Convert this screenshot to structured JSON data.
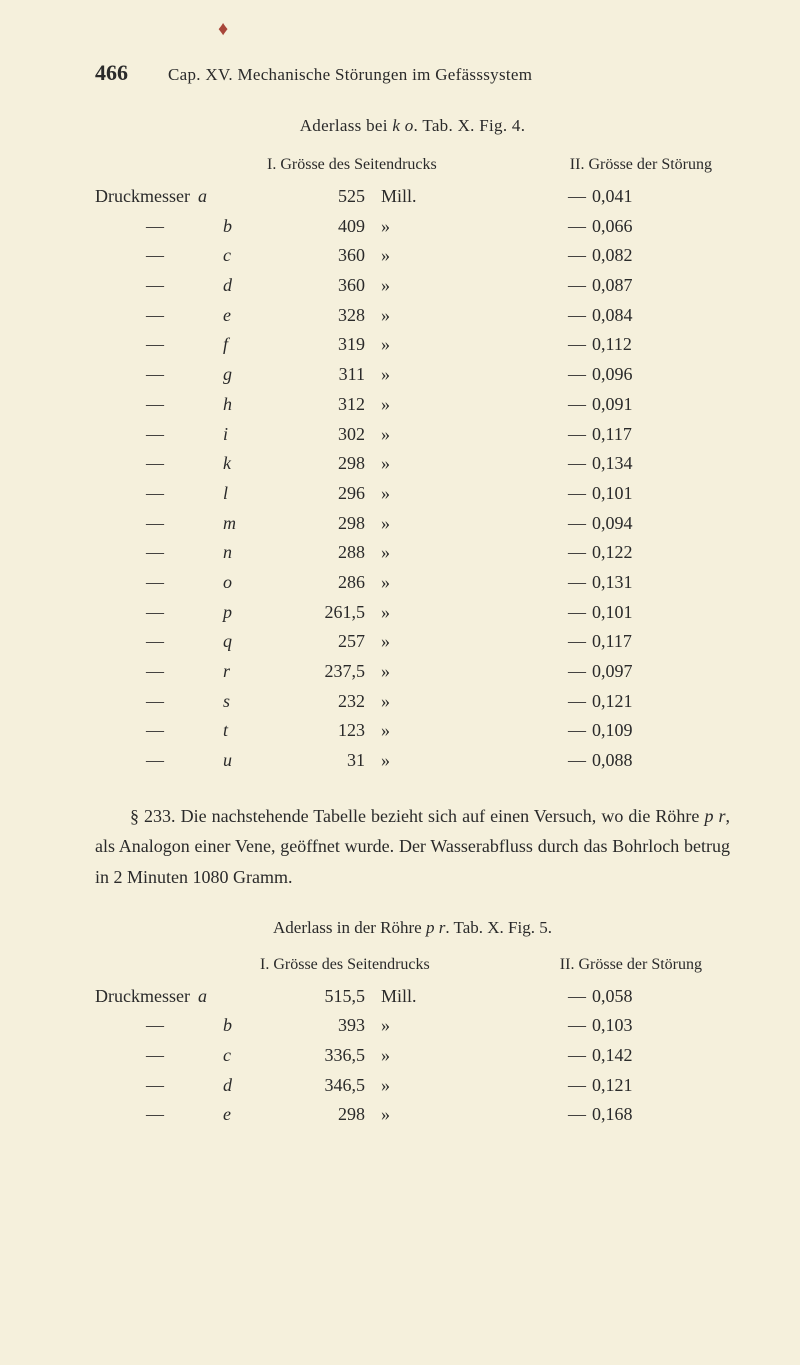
{
  "page_number": "466",
  "chapter_title": "Cap. XV. Mechanische Störungen im Gefässsystem",
  "table1": {
    "caption": "Aderlass bei k o. Tab. X. Fig. 4.",
    "col1_header": "I. Grösse des Seitendrucks",
    "col2_header": "II. Grösse der Störung",
    "label_first": "Druckmesser",
    "label_cont": "—",
    "unit_first": "Mill.",
    "unit_cont": "»",
    "dash": "—",
    "rows": [
      {
        "letter": "a",
        "pressure": "525",
        "disturbance": "0,041"
      },
      {
        "letter": "b",
        "pressure": "409",
        "disturbance": "0,066"
      },
      {
        "letter": "c",
        "pressure": "360",
        "disturbance": "0,082"
      },
      {
        "letter": "d",
        "pressure": "360",
        "disturbance": "0,087"
      },
      {
        "letter": "e",
        "pressure": "328",
        "disturbance": "0,084"
      },
      {
        "letter": "f",
        "pressure": "319",
        "disturbance": "0,112"
      },
      {
        "letter": "g",
        "pressure": "311",
        "disturbance": "0,096"
      },
      {
        "letter": "h",
        "pressure": "312",
        "disturbance": "0,091"
      },
      {
        "letter": "i",
        "pressure": "302",
        "disturbance": "0,117"
      },
      {
        "letter": "k",
        "pressure": "298",
        "disturbance": "0,134"
      },
      {
        "letter": "l",
        "pressure": "296",
        "disturbance": "0,101"
      },
      {
        "letter": "m",
        "pressure": "298",
        "disturbance": "0,094"
      },
      {
        "letter": "n",
        "pressure": "288",
        "disturbance": "0,122"
      },
      {
        "letter": "o",
        "pressure": "286",
        "disturbance": "0,131"
      },
      {
        "letter": "p",
        "pressure": "261,5",
        "disturbance": "0,101"
      },
      {
        "letter": "q",
        "pressure": "257",
        "disturbance": "0,117"
      },
      {
        "letter": "r",
        "pressure": "237,5",
        "disturbance": "0,097"
      },
      {
        "letter": "s",
        "pressure": "232",
        "disturbance": "0,121"
      },
      {
        "letter": "t",
        "pressure": "123",
        "disturbance": "0,109"
      },
      {
        "letter": "u",
        "pressure": "31",
        "disturbance": "0,088"
      }
    ]
  },
  "paragraph_233": "§ 233. Die nachstehende Tabelle bezieht sich auf einen Versuch, wo die Röhre p r, als Analogon einer Vene, geöffnet wurde. Der Wasserabfluss durch das Bohrloch betrug in 2 Minuten 1080 Gramm.",
  "table2": {
    "caption": "Aderlass in der Röhre p r. Tab. X. Fig. 5.",
    "col1_header": "I. Grösse des Seitendrucks",
    "col2_header": "II. Grösse der Störung",
    "label_first": "Druckmesser",
    "label_cont": "—",
    "unit_first": "Mill.",
    "unit_cont": "»",
    "dash": "—",
    "rows": [
      {
        "letter": "a",
        "pressure": "515,5",
        "disturbance": "0,058"
      },
      {
        "letter": "b",
        "pressure": "393",
        "disturbance": "0,103"
      },
      {
        "letter": "c",
        "pressure": "336,5",
        "disturbance": "0,142"
      },
      {
        "letter": "d",
        "pressure": "346,5",
        "disturbance": "0,121"
      },
      {
        "letter": "e",
        "pressure": "298",
        "disturbance": "0,168"
      }
    ]
  }
}
